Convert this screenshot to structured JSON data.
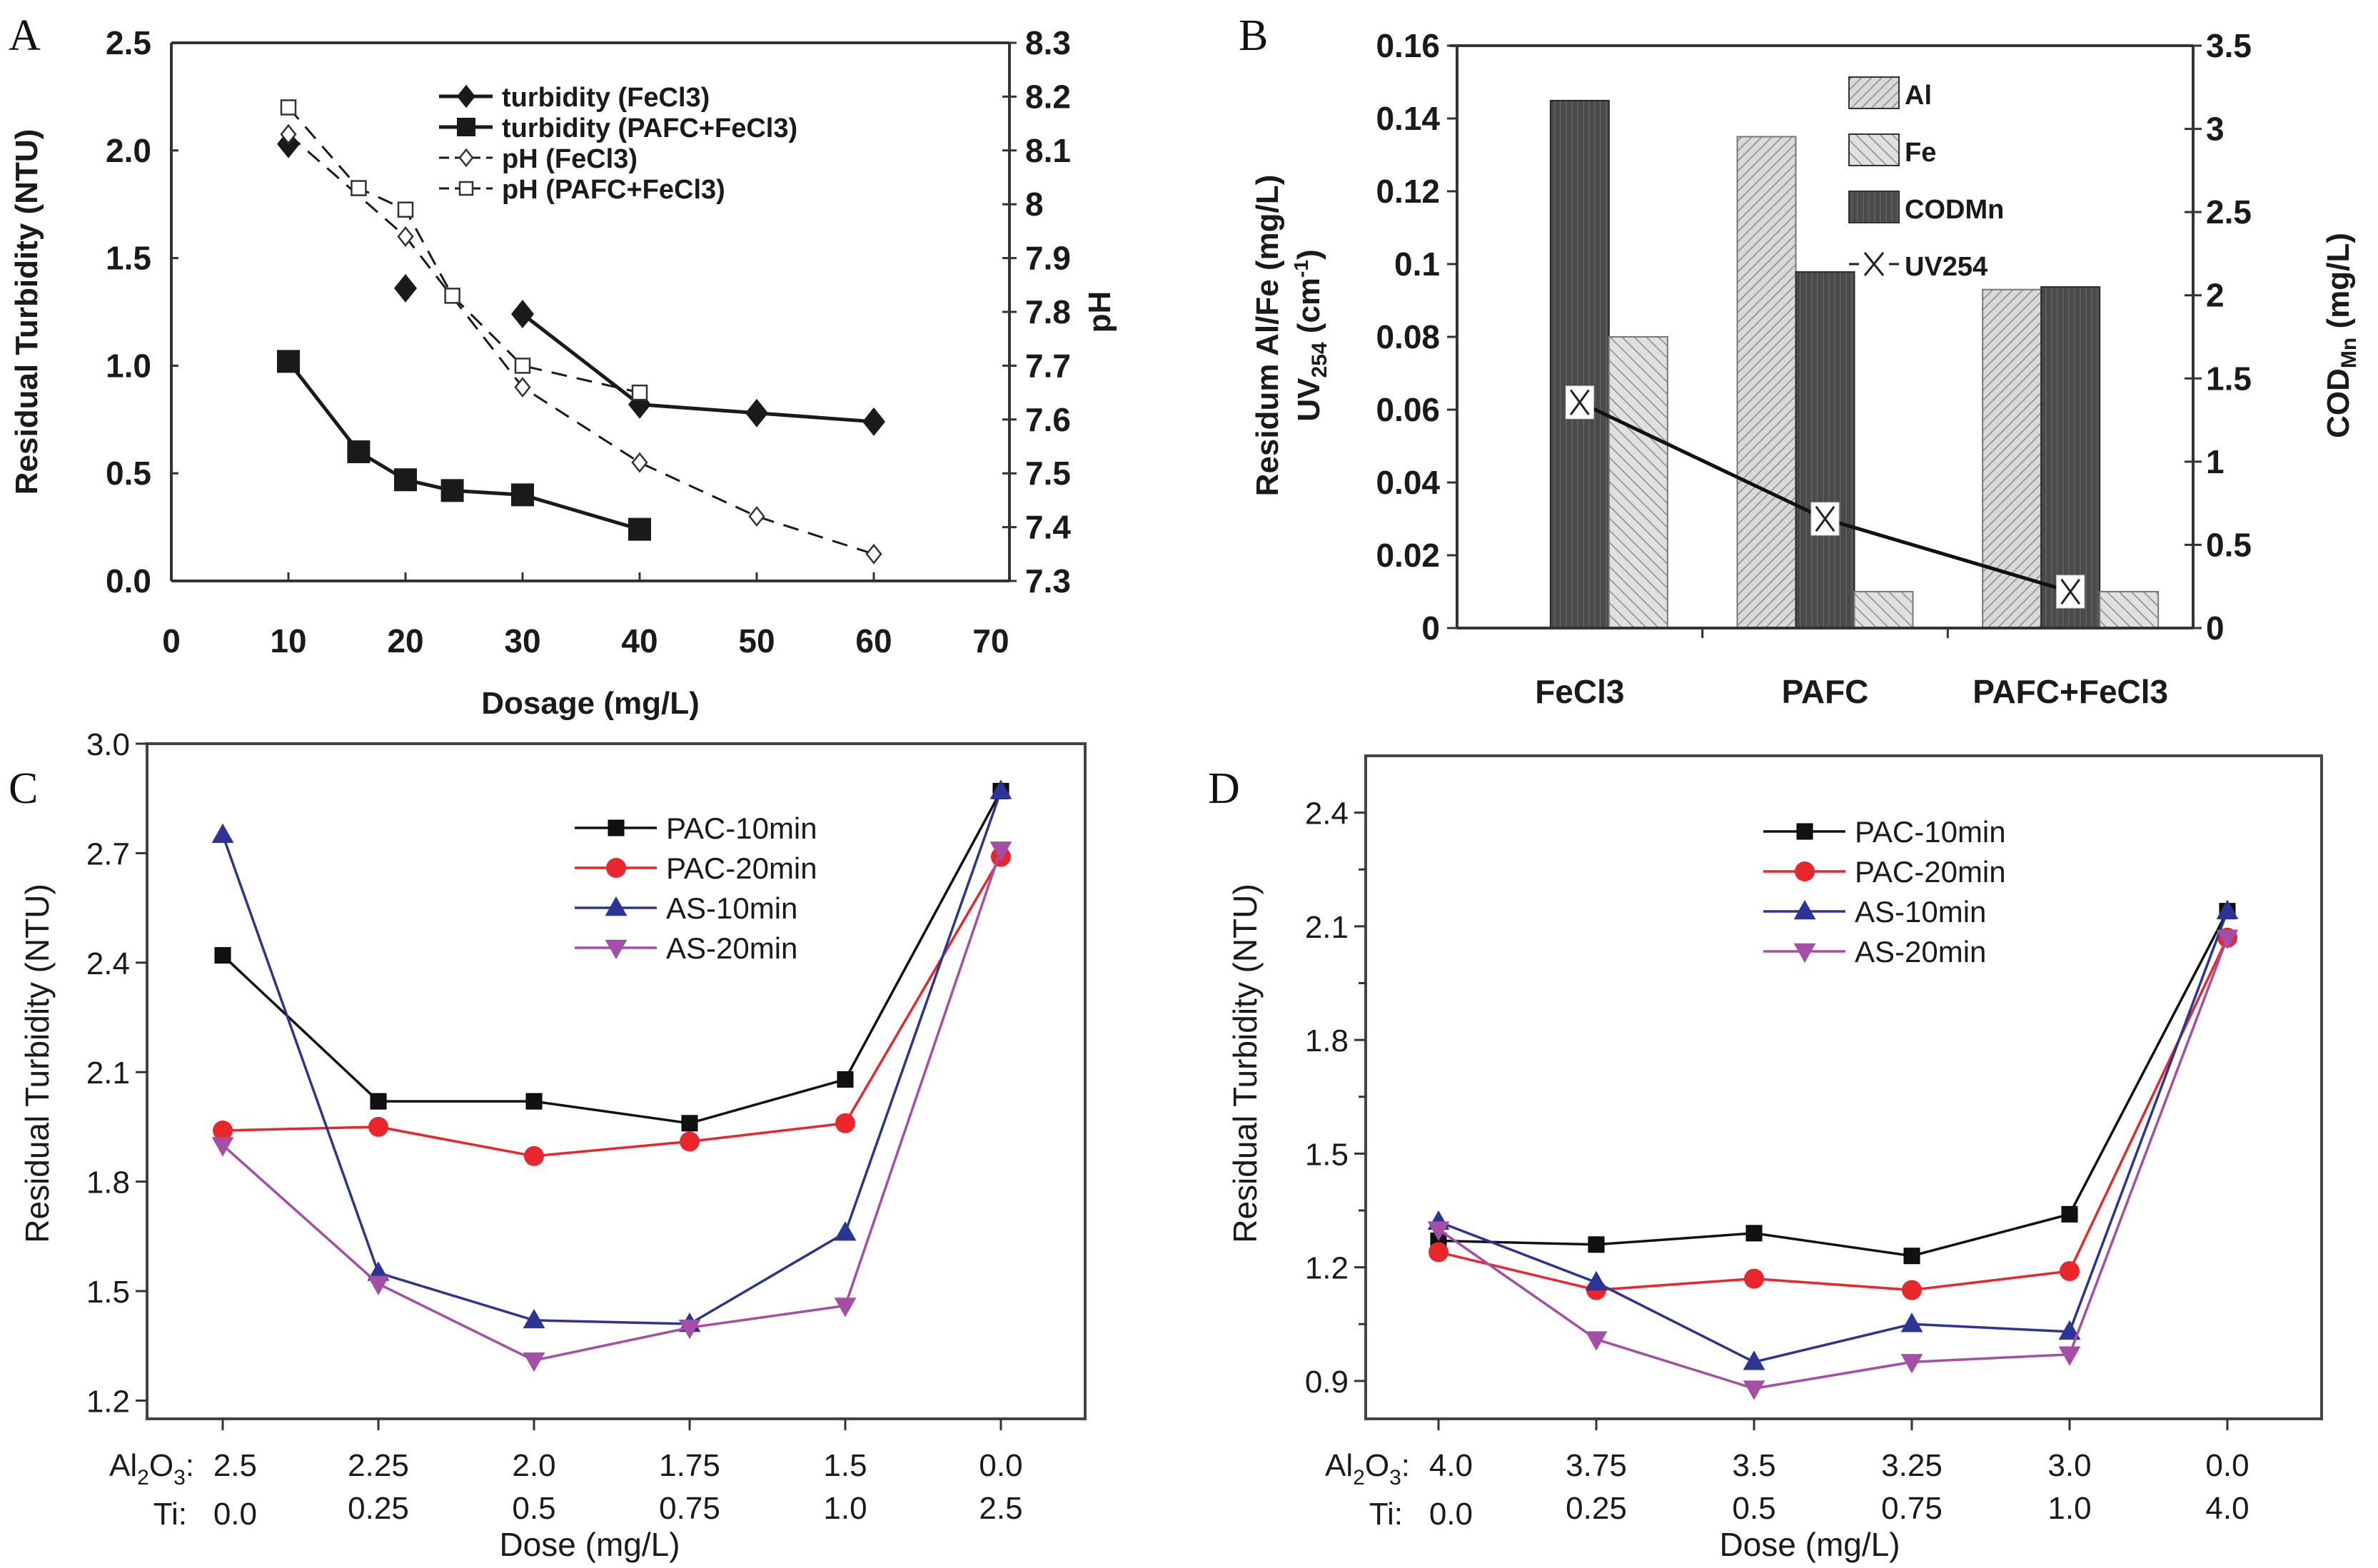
{
  "figure": {
    "panels": [
      "A",
      "B",
      "C",
      "D"
    ]
  },
  "chart_data": [
    {
      "panel": "A",
      "type": "line",
      "title": "",
      "xlabel": "Dosage (mg/L)",
      "ylabel": "Residual Turbidity (NTU)",
      "y2label": "pH",
      "xlim": [
        0,
        70
      ],
      "ylim": [
        0,
        2.5
      ],
      "y2lim": [
        7.3,
        8.3
      ],
      "xticks": [
        "0",
        "10",
        "20",
        "30",
        "40",
        "50",
        "60",
        "70"
      ],
      "yticks": [
        "0.0",
        "0.5",
        "1.0",
        "1.5",
        "2.0",
        "2.5"
      ],
      "y2ticks": [
        "7.3",
        "7.4",
        "7.5",
        "7.6",
        "7.7",
        "7.8",
        "7.9",
        "8",
        "8.1",
        "8.2",
        "8.3"
      ],
      "grid": false,
      "legend_position": "top-right",
      "series": [
        {
          "name": "turbidity (FeCl3)",
          "axis": "left",
          "marker": "diamond-filled",
          "line": "solid",
          "x": [
            10,
            20,
            30,
            40,
            50,
            60
          ],
          "y": [
            2.03,
            1.36,
            1.24,
            0.82,
            0.78,
            0.74
          ],
          "connected_from_index": 2
        },
        {
          "name": "turbidity (PAFC+FeCl3)",
          "axis": "left",
          "marker": "square-filled",
          "line": "solid",
          "x": [
            10,
            16,
            20,
            24,
            30,
            40
          ],
          "y": [
            1.02,
            0.6,
            0.47,
            0.42,
            0.4,
            0.24
          ],
          "connected_from_index": 0
        },
        {
          "name": "pH (FeCl3)",
          "axis": "right",
          "marker": "diamond-open",
          "line": "dashed",
          "x": [
            10,
            20,
            30,
            40,
            50,
            60
          ],
          "y": [
            8.13,
            7.94,
            7.66,
            7.52,
            7.42,
            7.35
          ],
          "connected_from_index": 0
        },
        {
          "name": "pH (PAFC+FeCl3)",
          "axis": "right",
          "marker": "square-open",
          "line": "dashed",
          "x": [
            10,
            16,
            20,
            24,
            30,
            40
          ],
          "y": [
            8.18,
            8.03,
            7.99,
            7.83,
            7.7,
            7.65
          ],
          "connected_from_index": 0
        }
      ]
    },
    {
      "panel": "B",
      "type": "bar",
      "title": "",
      "xlabel": "",
      "ylabel": "Residum Al/Fe (mg/L)",
      "ylabel2_line": "UV254 (cm-1)",
      "ylabel2_main": "UV",
      "ylabel2_sub": "254",
      "ylabel2_unit_open": " (cm",
      "ylabel2_unit_sup": "-1",
      "ylabel2_unit_close": ")",
      "y2label_main": "COD",
      "y2label_sub": "Mn",
      "y2label_unit": " (mg/L)",
      "categories": [
        "FeCl3",
        "PAFC",
        "PAFC+FeCl3"
      ],
      "ylim": [
        0,
        0.16
      ],
      "y2lim": [
        0,
        3.5
      ],
      "yticks": [
        "0",
        "0.02",
        "0.04",
        "0.06",
        "0.08",
        "0.1",
        "0.12",
        "0.14",
        "0.16"
      ],
      "y2ticks": [
        "0",
        "0.5",
        "1",
        "1.5",
        "2",
        "2.5",
        "3",
        "3.5"
      ],
      "grid": false,
      "legend_position": "top-right",
      "series": [
        {
          "name": "Al",
          "axis": "left",
          "kind": "bar",
          "pattern": "hatch-back",
          "values": [
            0,
            0.135,
            0.093
          ]
        },
        {
          "name": "Fe",
          "axis": "left",
          "kind": "bar",
          "pattern": "hatch-forward",
          "values": [
            0.08,
            0.01,
            0.01
          ]
        },
        {
          "name": "CODMn",
          "axis": "right",
          "kind": "bar",
          "pattern": "dark-vertical",
          "values": [
            3.17,
            2.14,
            2.05
          ]
        },
        {
          "name": "UV254",
          "axis": "left",
          "kind": "line",
          "marker": "x-box",
          "values": [
            0.062,
            0.03,
            0.01
          ]
        }
      ]
    },
    {
      "panel": "C",
      "type": "line",
      "title": "",
      "xlabel": "Dose (mg/L)",
      "ylabel": "Residual Turbidity (NTU)",
      "ylim": [
        1.15,
        3.0
      ],
      "yticks": [
        "1.2",
        "1.5",
        "1.8",
        "2.1",
        "2.4",
        "2.7",
        "3.0"
      ],
      "x_row1_prefix": "Al",
      "x_row1_sub1": "2",
      "x_row1_mid": "O",
      "x_row1_sub2": "3",
      "x_row1_colon": ":",
      "x_row2_prefix": "Ti:",
      "x_labels_row1": [
        "2.5",
        "2.25",
        "2.0",
        "1.75",
        "1.5",
        "0.0"
      ],
      "x_labels_row2": [
        "0.0",
        "0.25",
        "0.5",
        "0.75",
        "1.0",
        "2.5"
      ],
      "grid": false,
      "legend_position": "top-right",
      "series": [
        {
          "name": "PAC-10min",
          "color": "#111111",
          "marker": "square",
          "values": [
            2.42,
            2.02,
            2.02,
            1.96,
            2.08,
            2.87
          ]
        },
        {
          "name": "PAC-20min",
          "color": "#e8262b",
          "marker": "circle",
          "values": [
            1.94,
            1.95,
            1.87,
            1.91,
            1.96,
            2.69
          ]
        },
        {
          "name": "AS-10min",
          "color": "#2c3593",
          "marker": "triangle-up",
          "values": [
            2.75,
            1.55,
            1.42,
            1.41,
            1.66,
            2.87
          ]
        },
        {
          "name": "AS-20min",
          "color": "#a44ea6",
          "marker": "triangle-down",
          "values": [
            1.9,
            1.52,
            1.31,
            1.4,
            1.46,
            2.71
          ]
        }
      ]
    },
    {
      "panel": "D",
      "type": "line",
      "title": "",
      "xlabel": "Dose (mg/L)",
      "ylabel": "Residual Turbidity (NTU)",
      "ylim": [
        0.8,
        2.55
      ],
      "yticks": [
        "0.9",
        "1.2",
        "1.5",
        "1.8",
        "2.1",
        "2.4"
      ],
      "x_row1_prefix": "Al",
      "x_row1_sub1": "2",
      "x_row1_mid": "O",
      "x_row1_sub2": "3",
      "x_row1_colon": ":",
      "x_row2_prefix": "Ti:",
      "x_labels_row1": [
        "4.0",
        "3.75",
        "3.5",
        "3.25",
        "3.0",
        "0.0"
      ],
      "x_labels_row2": [
        "0.0",
        "0.25",
        "0.5",
        "0.75",
        "1.0",
        "4.0"
      ],
      "grid": false,
      "legend_position": "top-right",
      "series": [
        {
          "name": "PAC-10min",
          "color": "#111111",
          "marker": "square",
          "values": [
            1.27,
            1.26,
            1.29,
            1.23,
            1.34,
            2.14
          ]
        },
        {
          "name": "PAC-20min",
          "color": "#e8262b",
          "marker": "circle",
          "values": [
            1.24,
            1.14,
            1.17,
            1.14,
            1.19,
            2.07
          ]
        },
        {
          "name": "AS-10min",
          "color": "#2c3593",
          "marker": "triangle-up",
          "values": [
            1.32,
            1.16,
            0.95,
            1.05,
            1.03,
            2.14
          ]
        },
        {
          "name": "AS-20min",
          "color": "#a44ea6",
          "marker": "triangle-down",
          "values": [
            1.3,
            1.01,
            0.88,
            0.95,
            0.97,
            2.07
          ]
        }
      ]
    }
  ]
}
